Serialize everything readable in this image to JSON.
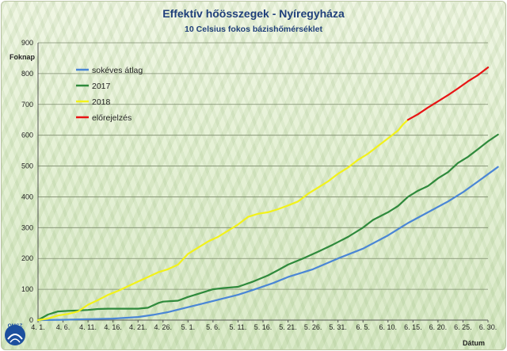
{
  "title": "Effektív hőösszegek - Nyíregyháza",
  "subtitle": "10 Celsius fokos bázishőmérséklet",
  "logo_text": "OMSZ",
  "chart_data": {
    "type": "line",
    "title": "Effektív hőösszegek - Nyíregyháza",
    "subtitle": "10 Celsius fokos bázishőmérséklet",
    "ylabel": "Foknap",
    "xlabel": "Dátum",
    "ylim": [
      0,
      900
    ],
    "yticks": [
      0,
      100,
      200,
      300,
      400,
      500,
      600,
      700,
      800,
      900
    ],
    "xlim": [
      0,
      90
    ],
    "xticks": [
      {
        "label": "4. 1.",
        "day": 0
      },
      {
        "label": "4. 6.",
        "day": 5
      },
      {
        "label": "4. 11.",
        "day": 10
      },
      {
        "label": "4. 16.",
        "day": 15
      },
      {
        "label": "4. 21.",
        "day": 20
      },
      {
        "label": "4. 26.",
        "day": 25
      },
      {
        "label": "5. 1.",
        "day": 30
      },
      {
        "label": "5. 6.",
        "day": 35
      },
      {
        "label": "5. 11.",
        "day": 40
      },
      {
        "label": "5. 16.",
        "day": 45
      },
      {
        "label": "5. 21.",
        "day": 50
      },
      {
        "label": "5. 26.",
        "day": 55
      },
      {
        "label": "5. 31.",
        "day": 60
      },
      {
        "label": "6. 5.",
        "day": 65
      },
      {
        "label": "6. 10.",
        "day": 70
      },
      {
        "label": "6. 15.",
        "day": 75
      },
      {
        "label": "6. 20.",
        "day": 80
      },
      {
        "label": "6. 25.",
        "day": 85
      },
      {
        "label": "6. 30.",
        "day": 90
      }
    ],
    "grid": true,
    "legend": "top-left",
    "series": [
      {
        "name": "sokéves átlag",
        "color": "#4a86d6",
        "points": [
          [
            0,
            0
          ],
          [
            5,
            1
          ],
          [
            10,
            3
          ],
          [
            15,
            5
          ],
          [
            20,
            10
          ],
          [
            23,
            17
          ],
          [
            26,
            26
          ],
          [
            30,
            42
          ],
          [
            35,
            62
          ],
          [
            40,
            82
          ],
          [
            43,
            98
          ],
          [
            47,
            120
          ],
          [
            50,
            140
          ],
          [
            55,
            165
          ],
          [
            60,
            200
          ],
          [
            65,
            232
          ],
          [
            70,
            275
          ],
          [
            74,
            315
          ],
          [
            78,
            350
          ],
          [
            82,
            385
          ],
          [
            85,
            415
          ],
          [
            88,
            450
          ],
          [
            92,
            497
          ]
        ]
      },
      {
        "name": "2017",
        "color": "#2f8a3c",
        "points": [
          [
            0,
            0
          ],
          [
            2,
            18
          ],
          [
            4,
            28
          ],
          [
            6,
            30
          ],
          [
            8,
            31
          ],
          [
            10,
            33
          ],
          [
            12,
            36
          ],
          [
            14,
            37
          ],
          [
            20,
            37
          ],
          [
            22,
            40
          ],
          [
            24,
            55
          ],
          [
            25,
            60
          ],
          [
            27,
            62
          ],
          [
            28,
            63
          ],
          [
            30,
            75
          ],
          [
            32,
            85
          ],
          [
            35,
            100
          ],
          [
            37,
            104
          ],
          [
            40,
            108
          ],
          [
            43,
            125
          ],
          [
            46,
            145
          ],
          [
            48,
            162
          ],
          [
            50,
            180
          ],
          [
            53,
            200
          ],
          [
            56,
            222
          ],
          [
            59,
            245
          ],
          [
            62,
            270
          ],
          [
            65,
            300
          ],
          [
            67,
            325
          ],
          [
            70,
            350
          ],
          [
            72,
            370
          ],
          [
            74,
            400
          ],
          [
            76,
            420
          ],
          [
            78,
            435
          ],
          [
            80,
            460
          ],
          [
            82,
            480
          ],
          [
            84,
            510
          ],
          [
            86,
            530
          ],
          [
            88,
            555
          ],
          [
            90,
            580
          ],
          [
            92,
            602
          ]
        ]
      },
      {
        "name": "2018",
        "color": "#f2f21a",
        "points": [
          [
            0,
            0
          ],
          [
            2,
            5
          ],
          [
            4,
            15
          ],
          [
            6,
            20
          ],
          [
            8,
            28
          ],
          [
            10,
            50
          ],
          [
            12,
            65
          ],
          [
            14,
            82
          ],
          [
            16,
            95
          ],
          [
            18,
            110
          ],
          [
            20,
            125
          ],
          [
            22,
            140
          ],
          [
            24,
            155
          ],
          [
            26,
            165
          ],
          [
            28,
            180
          ],
          [
            30,
            215
          ],
          [
            32,
            235
          ],
          [
            34,
            255
          ],
          [
            36,
            270
          ],
          [
            38,
            290
          ],
          [
            40,
            310
          ],
          [
            42,
            335
          ],
          [
            44,
            345
          ],
          [
            46,
            350
          ],
          [
            48,
            360
          ],
          [
            50,
            372
          ],
          [
            52,
            385
          ],
          [
            54,
            410
          ],
          [
            56,
            430
          ],
          [
            58,
            450
          ],
          [
            60,
            475
          ],
          [
            62,
            495
          ],
          [
            64,
            520
          ],
          [
            66,
            540
          ],
          [
            68,
            565
          ],
          [
            70,
            590
          ],
          [
            72,
            615
          ],
          [
            73,
            635
          ],
          [
            74,
            650
          ]
        ]
      },
      {
        "name": "előrejelzés",
        "color": "#e81414",
        "points": [
          [
            74,
            650
          ],
          [
            76,
            668
          ],
          [
            78,
            690
          ],
          [
            80,
            710
          ],
          [
            82,
            730
          ],
          [
            84,
            752
          ],
          [
            86,
            775
          ],
          [
            88,
            795
          ],
          [
            90,
            820
          ]
        ]
      }
    ]
  }
}
